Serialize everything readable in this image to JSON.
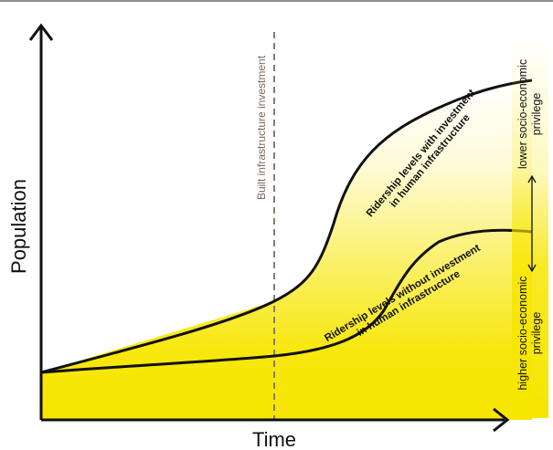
{
  "diagram": {
    "y_axis_label": "Population",
    "x_axis_label": "Time",
    "investment_line_label": "Built infrastructure investment",
    "upper_curve_label": {
      "line1": "Ridership levels with investment",
      "line2": "in human infrastructure"
    },
    "lower_curve_label": {
      "line1": "Ridership levels without investment",
      "line2": "in human infrastructure"
    },
    "privilege_scale": {
      "top_label": {
        "line1": "lower socio-economic",
        "line2": "privilege"
      },
      "bottom_label": {
        "line1": "higher socio-economic",
        "line2": "privilege"
      }
    },
    "colors": {
      "curves": "#111111",
      "fill": "#f7e600",
      "investment_line": "#8a7a72",
      "privilege_bar": "#f7e600"
    }
  }
}
